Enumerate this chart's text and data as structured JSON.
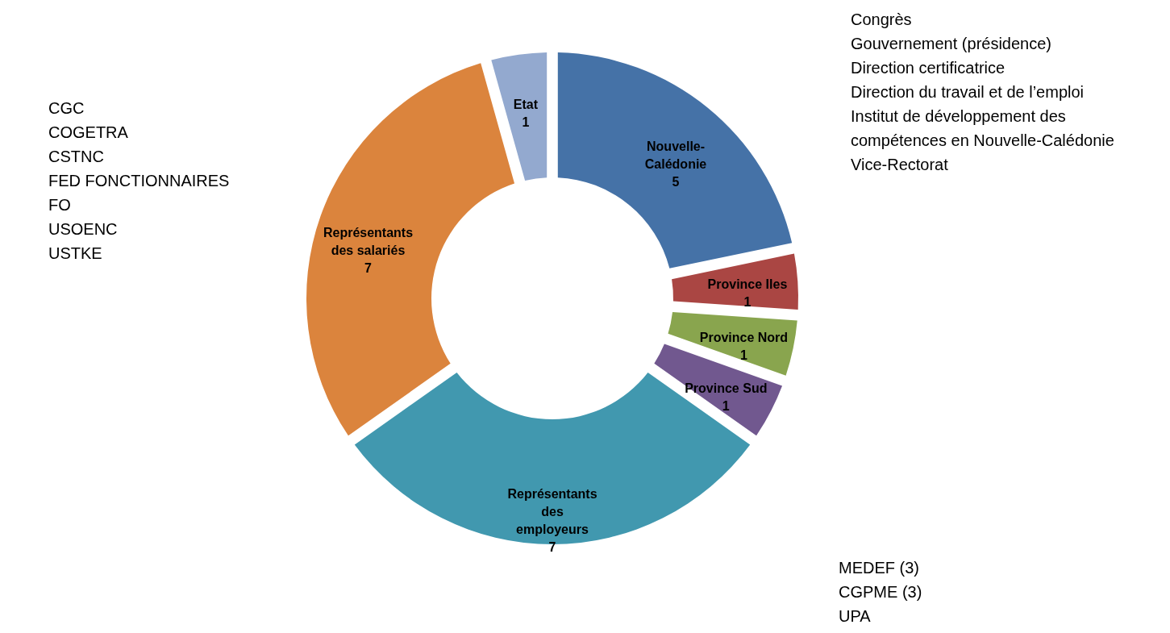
{
  "chart_data": {
    "type": "donut",
    "categories": [
      "Nouvelle-Calédonie",
      "Province Iles",
      "Province Nord",
      "Province Sud",
      "Représentants des employeurs",
      "Représentants des salariés",
      "Etat"
    ],
    "values": [
      5,
      1,
      1,
      1,
      7,
      7,
      1
    ],
    "colors": [
      "#4572a7",
      "#aa4643",
      "#89a54e",
      "#71588f",
      "#4198af",
      "#db843d",
      "#93a9cf"
    ],
    "data_labels": true,
    "legend": false,
    "annotations": [
      "CGC\nCOGETRA\nCSTNC\nFED FONCTIONNAIRES\nFO\nUSOENC\nUSTKE",
      "Congrès\nGouvernement (présidence)\nDirection certificatrice\nDirection du travail et de l’emploi\nInstitut de développement des\ncompétences en Nouvelle-Calédonie\n\nVice-Rectorat",
      "MEDEF (3)\nCGPME (3)\nUPA"
    ]
  }
}
